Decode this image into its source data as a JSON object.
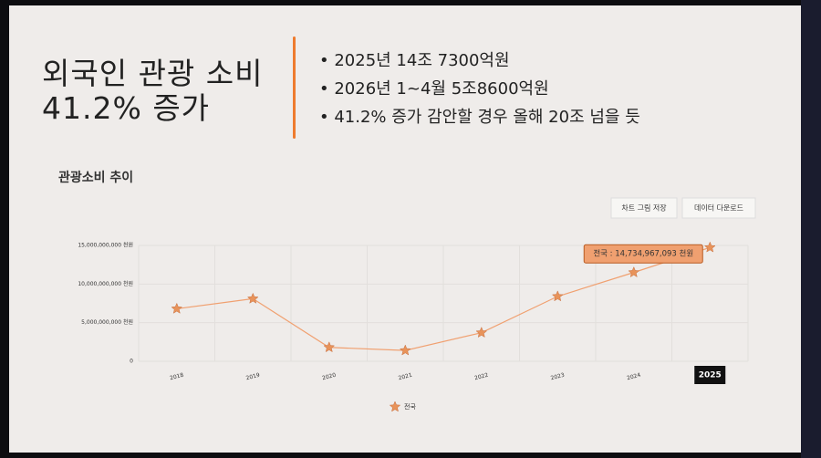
{
  "header": {
    "title_lines": [
      "외국인 관광 소비",
      "41.2% 증가"
    ],
    "bullets": [
      "2025년 14조 7300억원",
      "2026년 1~4월 5조8600억원",
      "41.2% 증가 감안할 경우 올해 20조 넘을 듯"
    ]
  },
  "chart_data": {
    "type": "line",
    "title": "관광소비 추이",
    "buttons": [
      "차트 그림 저장",
      "데이터 다운로드"
    ],
    "categories": [
      "2018",
      "2019",
      "2020",
      "2021",
      "2022",
      "2023",
      "2024",
      "2025"
    ],
    "series": [
      {
        "name": "전국",
        "color": "#f0a070",
        "values": [
          6800000000,
          8100000000,
          1800000000,
          1400000000,
          3700000000,
          8400000000,
          11500000000,
          14734967093
        ],
        "value_labels": [
          null,
          null,
          null,
          null,
          null,
          null,
          null,
          "전국 : 14,734,967,093 천원"
        ]
      }
    ],
    "ylim": [
      0,
      15000000000
    ],
    "yticks": [
      0,
      {
        "value": 5000000000,
        "label": "5,000,000,000 천원"
      },
      {
        "value": 10000000000,
        "label": "10,000,000,000 천원"
      },
      {
        "value": 15000000000,
        "label": "15,000,000,000 천원"
      }
    ],
    "grid": true,
    "legend": "bottom"
  }
}
